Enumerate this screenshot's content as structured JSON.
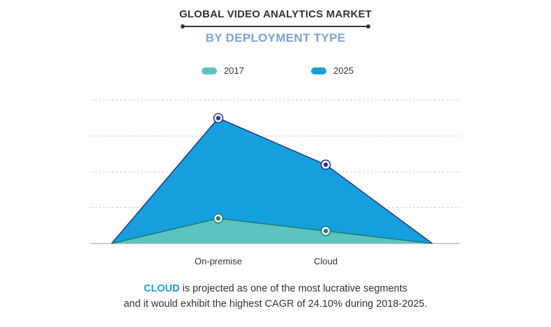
{
  "title": "GLOBAL VIDEO ANALYTICS MARKET",
  "subtitle": "BY DEPLOYMENT TYPE",
  "colors": {
    "s2017_fill": "#5bc4c0",
    "s2017_line": "#1b7f7a",
    "s2025_fill": "#159fdc",
    "s2025_line": "#2b3a8c",
    "grid": "#cccccc",
    "axis": "#999999"
  },
  "chart_data": {
    "type": "area",
    "categories": [
      "On-premise",
      "Cloud"
    ],
    "series": [
      {
        "name": "2017",
        "values": [
          0.7,
          0.35
        ]
      },
      {
        "name": "2025",
        "values": [
          3.5,
          2.2
        ]
      }
    ],
    "ylim": [
      0,
      4
    ],
    "grid": true,
    "legend": "top-center"
  },
  "footer": {
    "highlight": "CLOUD",
    "line1_rest": " is projected as one of the most lucrative segments",
    "line2": "and it would exhibit the highest CAGR of 24.10% during 2018-2025."
  }
}
